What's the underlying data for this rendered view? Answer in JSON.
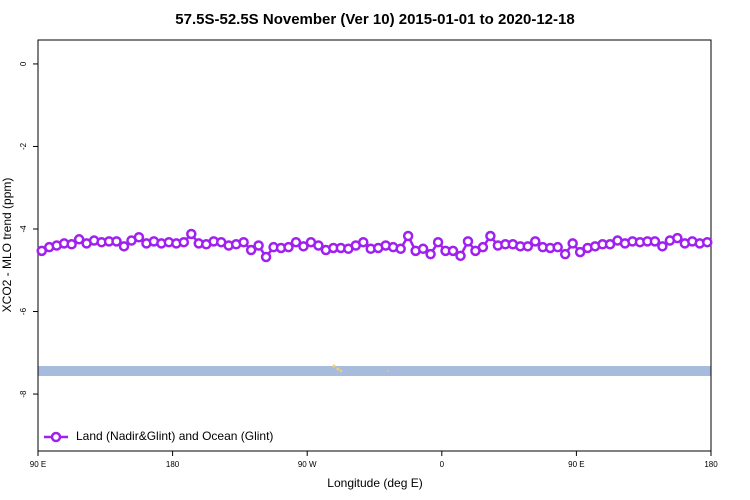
{
  "chart_data": {
    "type": "line",
    "title": "57.5S-52.5S November (Ver 10)   2015-01-01 to 2020-12-18",
    "x_label": "Longitude (deg E)",
    "y_label": "XCO2 - MLO trend (ppm)",
    "xlim": [
      90,
      540
    ],
    "xticks": [
      {
        "value": 90,
        "label": "90 E"
      },
      180,
      {
        "value": 270,
        "label": "90 W"
      },
      {
        "value": 360,
        "label": "0"
      },
      {
        "value": 450,
        "label": "90 E"
      },
      {
        "value": 540,
        "label": "180"
      }
    ],
    "ylim": [
      -9.38,
      0.58
    ],
    "yticks": [
      0,
      -2,
      -4,
      -6,
      -8
    ],
    "legend": "bottom-left",
    "series": [
      {
        "name": "Land (Nadir&Glint) and Ocean (Glint)",
        "color": "#a020f0",
        "x": [
          92.5,
          97.5,
          102.5,
          107.5,
          112.5,
          117.5,
          122.5,
          127.5,
          132.5,
          137.5,
          142.5,
          147.5,
          152.5,
          157.5,
          162.5,
          167.5,
          172.5,
          177.5,
          182.5,
          187.5,
          192.5,
          197.5,
          202.5,
          207.5,
          212.5,
          217.5,
          222.5,
          227.5,
          232.5,
          237.5,
          242.5,
          247.5,
          252.5,
          257.5,
          262.5,
          267.5,
          272.5,
          277.5,
          282.5,
          287.5,
          292.5,
          297.5,
          302.5,
          307.5,
          312.5,
          317.5,
          322.5,
          327.5,
          332.5,
          337.5,
          342.5,
          347.5,
          352.5,
          357.5,
          362.5,
          367.5,
          372.5,
          377.5,
          382.5,
          387.5,
          392.5,
          397.5,
          402.5,
          407.5,
          412.5,
          417.5,
          422.5,
          427.5,
          432.5,
          437.5,
          442.5,
          447.5,
          452.5,
          457.5,
          462.5,
          467.5,
          472.5,
          477.5,
          482.5,
          487.5,
          492.5,
          497.5,
          502.5,
          507.5,
          512.5,
          517.5,
          522.5,
          527.5,
          532.5,
          537.5
        ],
        "values": [
          -4.53,
          -4.44,
          -4.4,
          -4.35,
          -4.37,
          -4.25,
          -4.35,
          -4.28,
          -4.32,
          -4.3,
          -4.3,
          -4.42,
          -4.28,
          -4.2,
          -4.35,
          -4.3,
          -4.35,
          -4.32,
          -4.35,
          -4.32,
          -4.12,
          -4.35,
          -4.37,
          -4.3,
          -4.32,
          -4.4,
          -4.37,
          -4.32,
          -4.51,
          -4.4,
          -4.68,
          -4.44,
          -4.46,
          -4.44,
          -4.32,
          -4.42,
          -4.32,
          -4.4,
          -4.51,
          -4.46,
          -4.46,
          -4.48,
          -4.4,
          -4.32,
          -4.48,
          -4.46,
          -4.4,
          -4.44,
          -4.48,
          -4.17,
          -4.53,
          -4.48,
          -4.61,
          -4.32,
          -4.53,
          -4.53,
          -4.65,
          -4.3,
          -4.53,
          -4.44,
          -4.17,
          -4.4,
          -4.37,
          -4.37,
          -4.42,
          -4.42,
          -4.3,
          -4.44,
          -4.46,
          -4.44,
          -4.61,
          -4.35,
          -4.56,
          -4.46,
          -4.42,
          -4.37,
          -4.37,
          -4.28,
          -4.35,
          -4.3,
          -4.32,
          -4.3,
          -4.3,
          -4.42,
          -4.28,
          -4.22,
          -4.35,
          -4.3,
          -4.35,
          -4.32
        ]
      }
    ]
  }
}
